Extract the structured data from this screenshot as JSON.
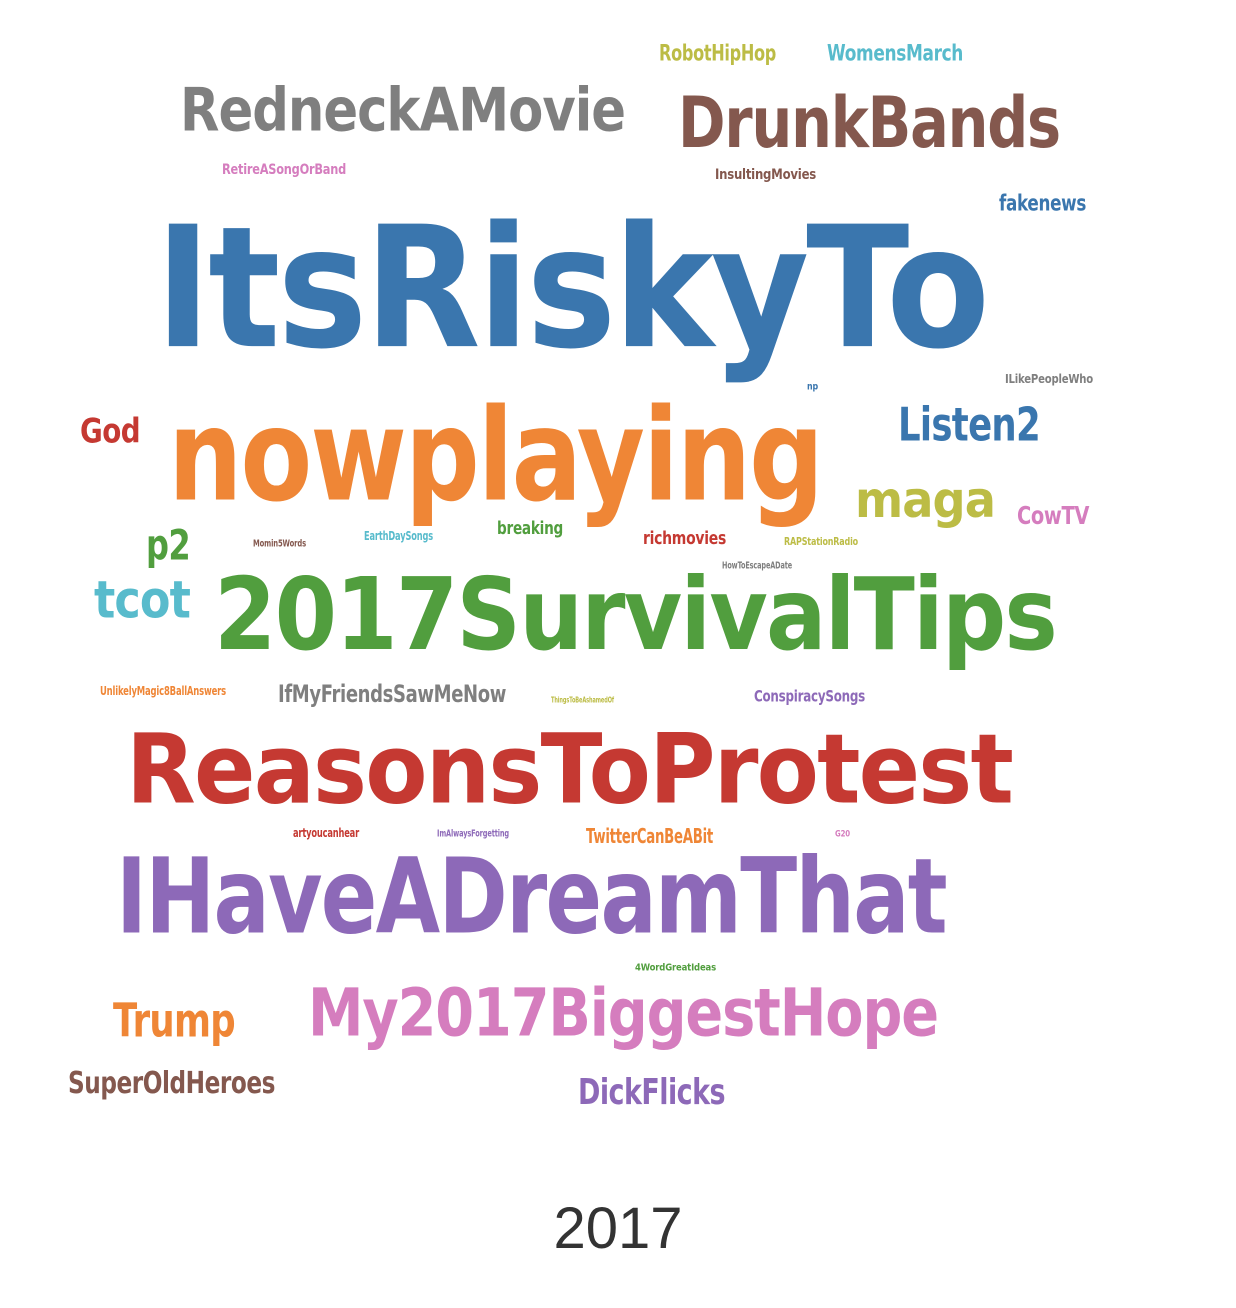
{
  "caption": "2017",
  "colors": {
    "blue": "#3a76ae",
    "orange": "#ef8636",
    "green": "#519e3e",
    "red": "#c53932",
    "purple": "#8d69b8",
    "brown": "#84584e",
    "pink": "#d57dbe",
    "gray": "#7f7f7f",
    "olive": "#bcbc45",
    "cyan": "#58bbcc"
  },
  "words": [
    {
      "text": "ItsRiskyTo",
      "color": "blue"
    },
    {
      "text": "nowplaying",
      "color": "orange"
    },
    {
      "text": "2017SurvivalTips",
      "color": "green"
    },
    {
      "text": "ReasonsToProtest",
      "color": "red"
    },
    {
      "text": "IHaveADreamThat",
      "color": "purple"
    },
    {
      "text": "DrunkBands",
      "color": "brown"
    },
    {
      "text": "My2017BiggestHope",
      "color": "pink"
    },
    {
      "text": "RedneckAMovie",
      "color": "gray"
    },
    {
      "text": "maga",
      "color": "olive"
    },
    {
      "text": "tcot",
      "color": "cyan"
    },
    {
      "text": "Listen2",
      "color": "blue"
    },
    {
      "text": "Trump",
      "color": "orange"
    },
    {
      "text": "p2",
      "color": "green"
    },
    {
      "text": "God",
      "color": "red"
    },
    {
      "text": "DickFlicks",
      "color": "purple"
    },
    {
      "text": "SuperOldHeroes",
      "color": "brown"
    },
    {
      "text": "CowTV",
      "color": "pink"
    },
    {
      "text": "IfMyFriendsSawMeNow",
      "color": "gray"
    },
    {
      "text": "RobotHipHop",
      "color": "olive"
    },
    {
      "text": "WomensMarch",
      "color": "cyan"
    },
    {
      "text": "fakenews",
      "color": "blue"
    },
    {
      "text": "TwitterCanBeABit",
      "color": "orange"
    },
    {
      "text": "breaking",
      "color": "green"
    },
    {
      "text": "richmovies",
      "color": "red"
    },
    {
      "text": "ConspiracySongs",
      "color": "purple"
    },
    {
      "text": "InsultingMovies",
      "color": "brown"
    },
    {
      "text": "RetireASongOrBand",
      "color": "pink"
    },
    {
      "text": "ILikePeopleWho",
      "color": "gray"
    },
    {
      "text": "EarthDaySongs",
      "color": "cyan"
    },
    {
      "text": "UnlikelyMagic8BallAnswers",
      "color": "orange"
    },
    {
      "text": "artyoucanhear",
      "color": "red"
    },
    {
      "text": "ImAlwaysForgetting",
      "color": "purple"
    },
    {
      "text": "Momin5Words",
      "color": "brown"
    },
    {
      "text": "HowToEscapeADate",
      "color": "gray"
    },
    {
      "text": "RAPStationRadio",
      "color": "olive"
    },
    {
      "text": "4WordGreatIdeas",
      "color": "green"
    },
    {
      "text": "G20",
      "color": "pink"
    },
    {
      "text": "ThingsToBeAshamedOf",
      "color": "olive"
    },
    {
      "text": "np",
      "color": "blue"
    }
  ]
}
